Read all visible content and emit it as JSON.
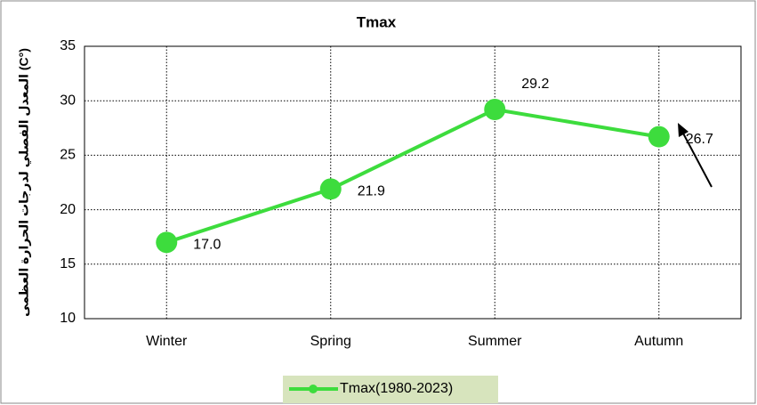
{
  "chart_data": {
    "type": "line",
    "title": "Tmax",
    "y_label": "المعدل الفصلي لدرجات الحرارة العظمى (C°)",
    "categories": [
      "Winter",
      "Spring",
      "Summer",
      "Autumn"
    ],
    "series": [
      {
        "name": "Tmax(1980-2023)",
        "color": "#3ddc3d",
        "values": [
          17.0,
          21.9,
          29.2,
          26.7
        ],
        "value_labels": [
          "17.0",
          "21.9",
          "29.2",
          "26.7"
        ]
      }
    ],
    "ylim": [
      10,
      35
    ],
    "yticks": [
      10,
      15,
      20,
      25,
      30,
      35
    ],
    "grid": true,
    "legend": "bottom"
  }
}
